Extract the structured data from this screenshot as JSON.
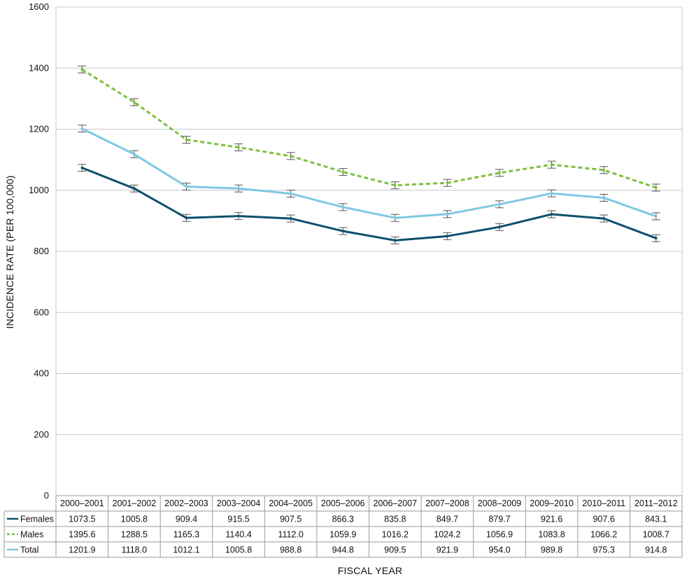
{
  "chart_data": {
    "type": "line",
    "title": "",
    "xlabel": "FISCAL YEAR",
    "ylabel": "INCIDENCE RATE (PER 100,000)",
    "ylim": [
      0,
      1600
    ],
    "yticks": [
      "0",
      "200",
      "400",
      "600",
      "800",
      "1000",
      "1200",
      "1400",
      "1600"
    ],
    "grid": true,
    "legend": "table-left",
    "error_bars": true,
    "categories": [
      "2000–2001",
      "2001–2002",
      "2002–2003",
      "2003–2004",
      "2004–2005",
      "2005–2006",
      "2006–2007",
      "2007–2008",
      "2008–2009",
      "2009–2010",
      "2010–2011",
      "2011–2012"
    ],
    "series": [
      {
        "name": "Females",
        "color": "#0d4f6e",
        "style": "solid",
        "values": [
          1073.5,
          1005.8,
          909.4,
          915.5,
          907.5,
          866.3,
          835.8,
          849.7,
          879.7,
          921.6,
          907.6,
          843.1
        ],
        "labels": [
          "1073.5",
          "1005.8",
          "909.4",
          "915.5",
          "907.5",
          "866.3",
          "835.8",
          "849.7",
          "879.7",
          "921.6",
          "907.6",
          "843.1"
        ]
      },
      {
        "name": "Males",
        "color": "#7fbf3f",
        "style": "dashed",
        "values": [
          1395.6,
          1288.5,
          1165.3,
          1140.4,
          1112.0,
          1059.9,
          1016.2,
          1024.2,
          1056.9,
          1083.8,
          1066.2,
          1008.7
        ],
        "labels": [
          "1395.6",
          "1288.5",
          "1165.3",
          "1140.4",
          "1112.0",
          "1059.9",
          "1016.2",
          "1024.2",
          "1056.9",
          "1083.8",
          "1066.2",
          "1008.7"
        ]
      },
      {
        "name": "Total",
        "color": "#7ec8e3",
        "style": "solid",
        "values": [
          1201.9,
          1118.0,
          1012.1,
          1005.8,
          988.8,
          944.8,
          909.5,
          921.9,
          954.0,
          989.8,
          975.3,
          914.8
        ],
        "labels": [
          "1201.9",
          "1118.0",
          "1012.1",
          "1005.8",
          "988.8",
          "944.8",
          "909.5",
          "921.9",
          "954.0",
          "989.8",
          "975.3",
          "914.8"
        ]
      }
    ]
  }
}
